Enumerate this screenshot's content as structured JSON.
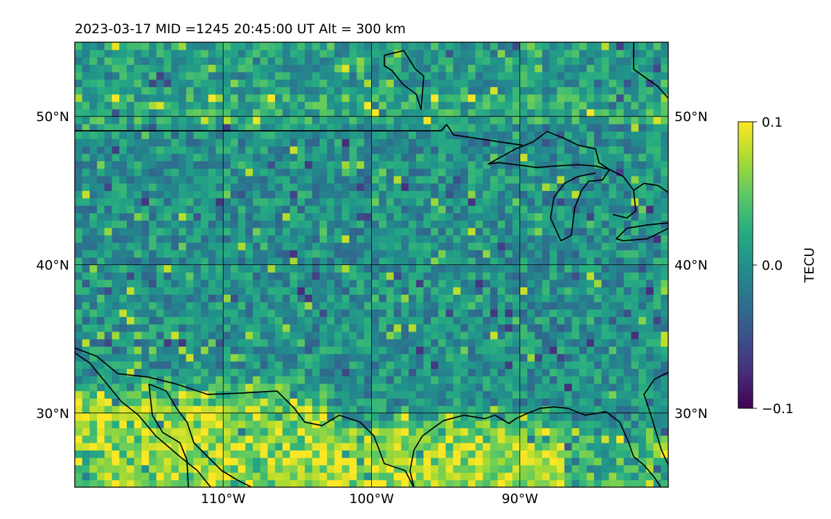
{
  "title": "2023-03-17  MID =1245    20:45:00  UT  Alt = 300 km",
  "map": {
    "lon_range": [
      -120,
      -80
    ],
    "lat_range": [
      25,
      55
    ],
    "lat_gridlines": [
      30,
      40,
      50
    ],
    "lon_gridlines": [
      -110,
      -100,
      -90
    ],
    "lat_tick_labels": [
      "30°N",
      "40°N",
      "50°N"
    ],
    "lon_tick_labels": [
      "110°W",
      "100°W",
      "90°W"
    ],
    "grid": true,
    "cell_size_deg": 0.5,
    "field": "TEC perturbation",
    "field_pattern": "small-scale noise near 0 TECU across the US; strongly positive (yellow, up to 0.1) band along southern border, Texas and Gulf coast; slightly positive over southern Canada",
    "coastline_color": "#000000",
    "gridline_color": "#000000"
  },
  "colorbar": {
    "label": "TECU",
    "colormap": "viridis",
    "min": -0.1,
    "max": 0.1,
    "ticks": [
      -0.1,
      0.0,
      0.1
    ],
    "tick_labels": [
      "−0.1",
      "0.0",
      "0.1"
    ],
    "colors": [
      "#440154",
      "#472d7b",
      "#3b528b",
      "#2c728e",
      "#21918c",
      "#28ae80",
      "#5ec962",
      "#addc30",
      "#fde725"
    ]
  }
}
